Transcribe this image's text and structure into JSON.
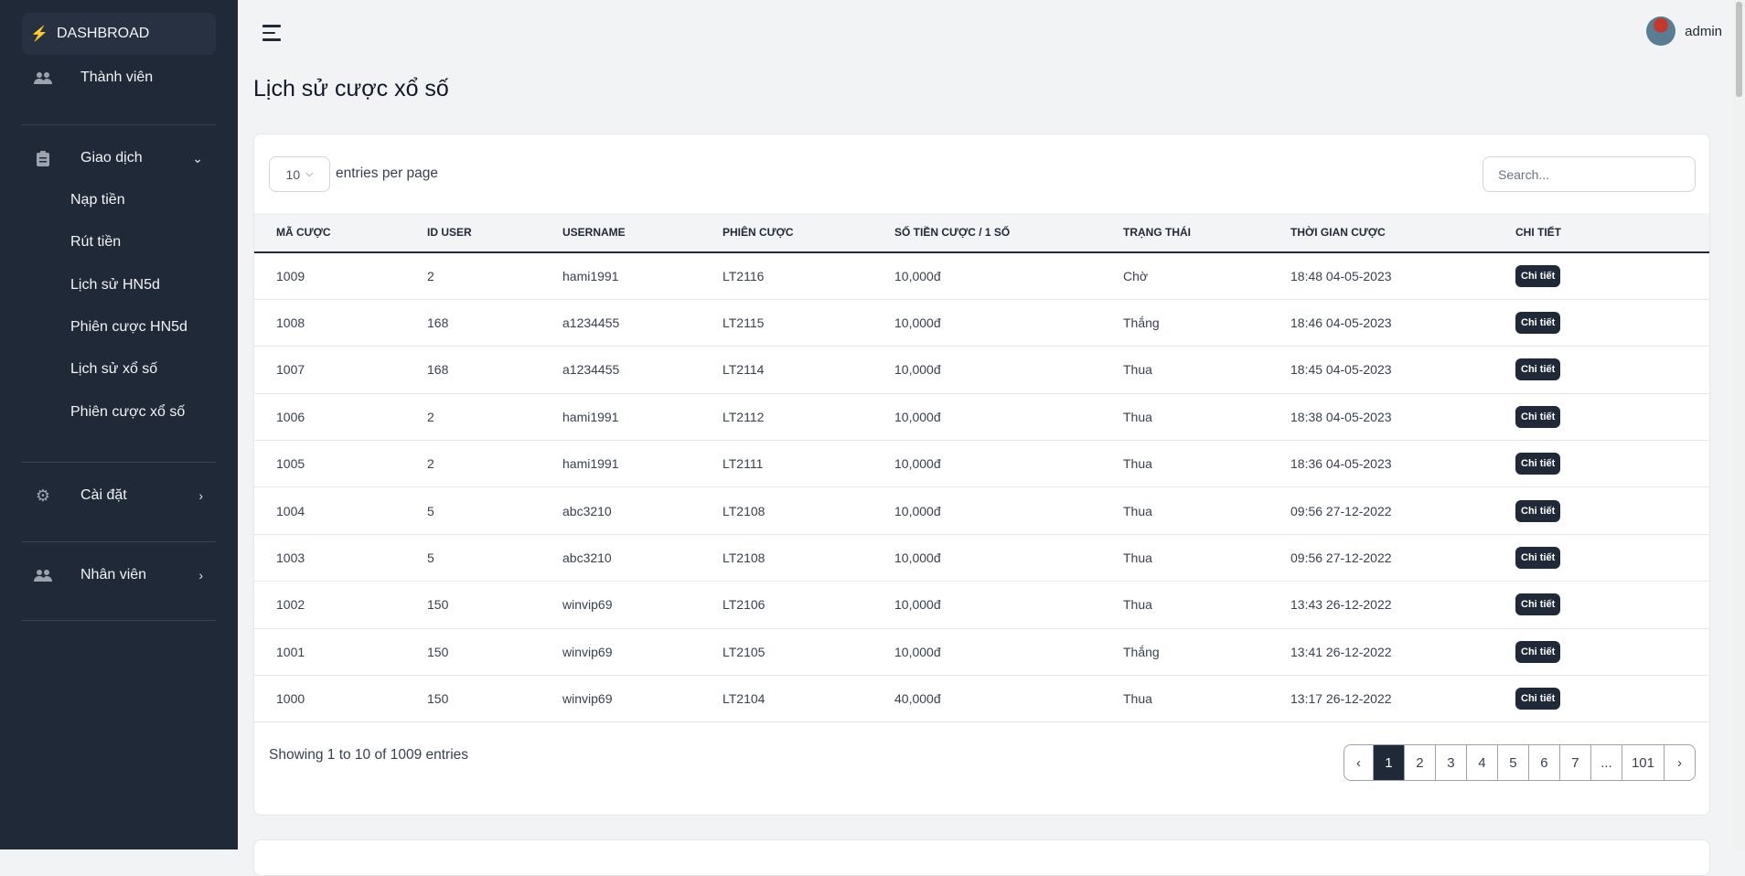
{
  "sidebar": {
    "dashboard": "DASHBROAD",
    "members": "Thành viên",
    "transactions": "Giao dịch",
    "sub": [
      "Nạp tiền",
      "Rút tiền",
      "Lịch sử HN5d",
      "Phiên cược HN5d",
      "Lịch sử xổ số",
      "Phiên cược xổ số"
    ],
    "settings": "Cài đặt",
    "staff": "Nhân viên"
  },
  "header": {
    "user": "admin"
  },
  "page": {
    "title": "Lịch sử cược xổ số"
  },
  "table": {
    "per_page": "10",
    "entries_label": "entries per page",
    "search_placeholder": "Search...",
    "columns": [
      "MÃ CƯỢC",
      "ID USER",
      "USERNAME",
      "PHIÊN CƯỢC",
      "SỐ TIỀN CƯỢC / 1 SỐ",
      "TRẠNG THÁI",
      "THỜI GIAN CƯỢC",
      "CHI TIẾT"
    ],
    "rows": [
      [
        "1009",
        "2",
        "hami1991",
        "LT2116",
        "10,000đ",
        "Chờ",
        "18:48 04-05-2023",
        "Chi tiết"
      ],
      [
        "1008",
        "168",
        "a1234455",
        "LT2115",
        "10,000đ",
        "Thắng",
        "18:46 04-05-2023",
        "Chi tiết"
      ],
      [
        "1007",
        "168",
        "a1234455",
        "LT2114",
        "10,000đ",
        "Thua",
        "18:45 04-05-2023",
        "Chi tiết"
      ],
      [
        "1006",
        "2",
        "hami1991",
        "LT2112",
        "10,000đ",
        "Thua",
        "18:38 04-05-2023",
        "Chi tiết"
      ],
      [
        "1005",
        "2",
        "hami1991",
        "LT2111",
        "10,000đ",
        "Thua",
        "18:36 04-05-2023",
        "Chi tiết"
      ],
      [
        "1004",
        "5",
        "abc3210",
        "LT2108",
        "10,000đ",
        "Thua",
        "09:56 27-12-2022",
        "Chi tiết"
      ],
      [
        "1003",
        "5",
        "abc3210",
        "LT2108",
        "10,000đ",
        "Thua",
        "09:56 27-12-2022",
        "Chi tiết"
      ],
      [
        "1002",
        "150",
        "winvip69",
        "LT2106",
        "10,000đ",
        "Thua",
        "13:43 26-12-2022",
        "Chi tiết"
      ],
      [
        "1001",
        "150",
        "winvip69",
        "LT2105",
        "10,000đ",
        "Thắng",
        "13:41 26-12-2022",
        "Chi tiết"
      ],
      [
        "1000",
        "150",
        "winvip69",
        "LT2104",
        "40,000đ",
        "Thua",
        "13:17 26-12-2022",
        "Chi tiết"
      ]
    ],
    "showing": "Showing 1 to 10 of 1009 entries",
    "pages": [
      "‹",
      "1",
      "2",
      "3",
      "4",
      "5",
      "6",
      "7",
      "...",
      "101",
      "›"
    ],
    "current_page": "1"
  },
  "colors": {
    "sidebar": "#1f2937",
    "accent": "#f59e0b"
  }
}
